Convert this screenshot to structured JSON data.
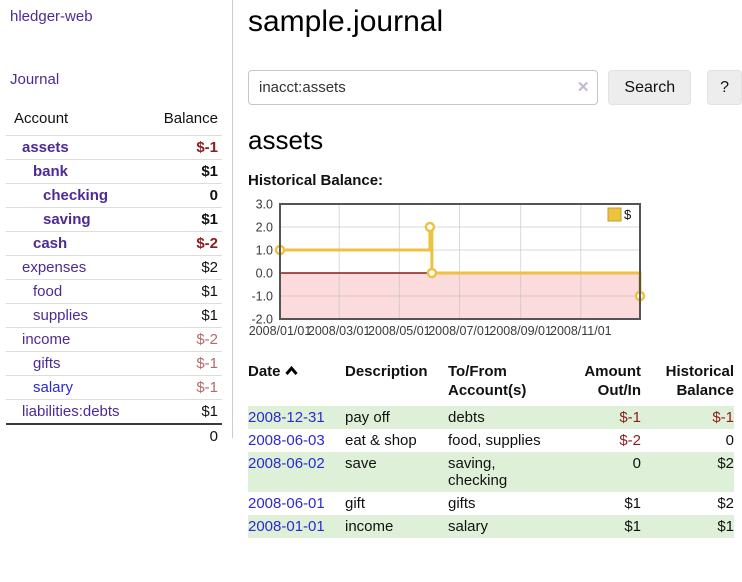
{
  "brand": "hledger-web",
  "nav": {
    "journal": "Journal"
  },
  "sidebar": {
    "col_account": "Account",
    "col_balance": "Balance",
    "accounts": [
      {
        "name": "assets",
        "balance": "$-1"
      },
      {
        "name": "bank",
        "balance": "$1"
      },
      {
        "name": "checking",
        "balance": "0"
      },
      {
        "name": "saving",
        "balance": "$1"
      },
      {
        "name": "cash",
        "balance": "$-2"
      },
      {
        "name": "expenses",
        "balance": "$2"
      },
      {
        "name": "food",
        "balance": "$1"
      },
      {
        "name": "supplies",
        "balance": "$1"
      },
      {
        "name": "income",
        "balance": "$-2"
      },
      {
        "name": "gifts",
        "balance": "$-1"
      },
      {
        "name": "salary",
        "balance": "$-1"
      },
      {
        "name": "liabilities:debts",
        "balance": "$1"
      }
    ],
    "total": "0"
  },
  "header": {
    "title": "sample.journal"
  },
  "search": {
    "query": "inacct:assets",
    "clear_icon": "✕",
    "button": "Search",
    "help_button": "?"
  },
  "report": {
    "account": "assets",
    "chart_title": "Historical Balance:"
  },
  "chart_data": {
    "type": "line",
    "title": "Historical Balance:",
    "step": true,
    "series": [
      {
        "name": "$",
        "color": "#edc240",
        "points": [
          [
            "2008-01-01",
            1
          ],
          [
            "2008-06-01",
            2
          ],
          [
            "2008-06-03",
            0
          ],
          [
            "2008-12-31",
            -1
          ]
        ]
      }
    ],
    "x_ticks": [
      "2008/01/01",
      "2008/03/01",
      "2008/05/01",
      "2008/07/01",
      "2008/09/01",
      "2008/11/01"
    ],
    "y_ticks": [
      3.0,
      2.0,
      1.0,
      0.0,
      -1.0,
      -2.0
    ],
    "ylim": [
      -2,
      3
    ],
    "legend_position": "top-right",
    "grid": true,
    "negative_fill": "#fbdbdb",
    "zero_line_color": "#8b1a1a"
  },
  "register": {
    "columns": {
      "date": "Date",
      "description": "Description",
      "tofrom": "To/From Account(s)",
      "amount": "Amount Out/In",
      "balance": "Historical Balance"
    },
    "rows": [
      {
        "date": "2008-12-31",
        "description": "pay off",
        "accounts": "debts",
        "amount": "$-1",
        "balance": "$-1"
      },
      {
        "date": "2008-06-03",
        "description": "eat & shop",
        "accounts": "food, supplies",
        "amount": "$-2",
        "balance": "0"
      },
      {
        "date": "2008-06-02",
        "description": "save",
        "accounts": "saving, checking",
        "amount": "0",
        "balance": "$2"
      },
      {
        "date": "2008-06-01",
        "description": "gift",
        "accounts": "gifts",
        "amount": "$1",
        "balance": "$2"
      },
      {
        "date": "2008-01-01",
        "description": "income",
        "accounts": "salary",
        "amount": "$1",
        "balance": "$1"
      }
    ]
  },
  "colors": {
    "accent_purple": "#4d2b96",
    "link_blue": "#2a2ad2",
    "negative_strong": "#8b1d1d",
    "negative_soft": "#b46a6a",
    "row_green": "#dff0d8",
    "series_gold": "#edc240"
  }
}
